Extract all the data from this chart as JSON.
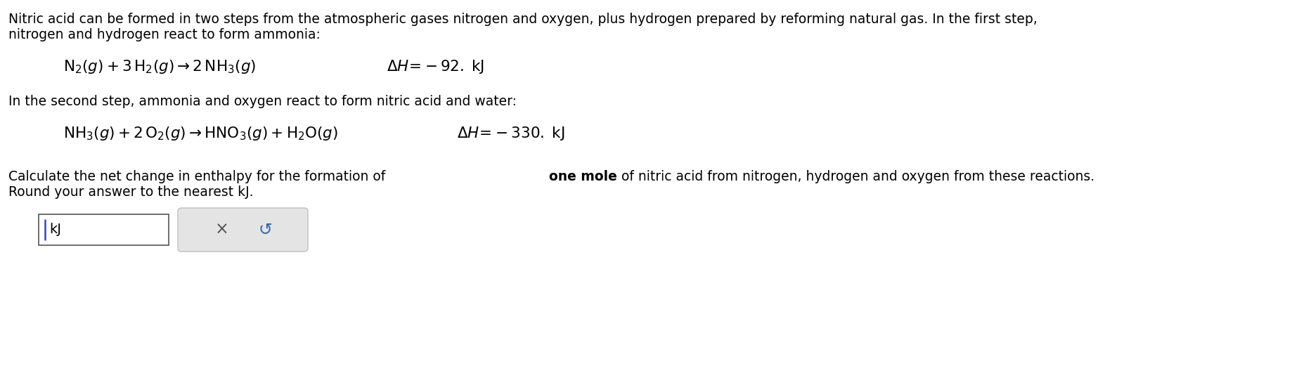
{
  "bg_color": "#ffffff",
  "text_color": "#000000",
  "font_size_body": 13.5,
  "para1": "Nitric acid can be formed in two steps from the atmospheric gases nitrogen and oxygen, plus hydrogen prepared by reforming natural gas. In the first step,",
  "para1b": "nitrogen and hydrogen react to form ammonia:",
  "para2": "In the second step, ammonia and oxygen react to form nitric acid and water:",
  "para3a": "Calculate the net change in enthalpy for the formation of ",
  "para3b": "one mole",
  "para3c": " of nitric acid from nitrogen, hydrogen and oxygen from these reactions.",
  "para4": "Round your answer to the nearest kJ.",
  "kJ_label": "kJ",
  "x_symbol": "×",
  "undo_symbol": "↺",
  "cursor_color": "#3344cc",
  "btn_bg": "#e4e4e4",
  "btn_border": "#c0c0c0"
}
